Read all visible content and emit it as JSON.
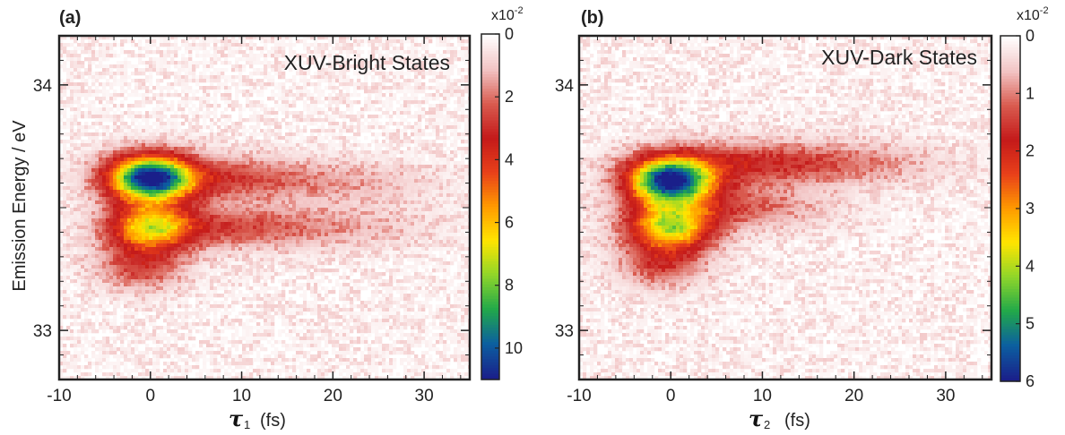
{
  "chart_data": [
    {
      "type": "heatmap",
      "panel_label": "(a)",
      "annotation": "XUV-Bright States",
      "xlabel_symbol": "τ",
      "xlabel_subscript": "1",
      "xlabel_unit": "(fs)",
      "ylabel": "Emission Energy / eV",
      "xlim": [
        -10,
        35
      ],
      "ylim": [
        32.8,
        34.2
      ],
      "xticks": [
        -10,
        0,
        10,
        20,
        30
      ],
      "yticks": [
        33,
        34
      ],
      "colorbar": {
        "range": [
          0,
          11
        ],
        "ticks": [
          0,
          2,
          4,
          6,
          8,
          10
        ],
        "multiplier": "x10",
        "multiplier_exp": "-2",
        "colormap": [
          "#ffffff",
          "#f2c4c4",
          "#d95b4f",
          "#c41a1a",
          "#e8401a",
          "#ff9a00",
          "#ffe500",
          "#8fd62a",
          "#21a84a",
          "#0c5fa0",
          "#1a1f8a"
        ]
      },
      "peaks": [
        {
          "x": 0,
          "y": 33.62,
          "value": 10.5
        },
        {
          "x": 0,
          "y": 33.42,
          "value": 6.0
        },
        {
          "x": -1,
          "y": 33.26,
          "value": 2.3
        },
        {
          "x": 8,
          "y": 33.62,
          "value": 2.2
        },
        {
          "x": 9,
          "y": 33.42,
          "value": 2.0
        },
        {
          "x": 22,
          "y": 33.6,
          "value": 0.9
        },
        {
          "x": 22,
          "y": 33.42,
          "value": 0.8
        }
      ]
    },
    {
      "type": "heatmap",
      "panel_label": "(b)",
      "annotation": "XUV-Dark States",
      "xlabel_symbol": "τ",
      "xlabel_subscript": "2",
      "xlabel_unit": "(fs)",
      "ylabel": "",
      "xlim": [
        -10,
        35
      ],
      "ylim": [
        32.8,
        34.2
      ],
      "xticks": [
        -10,
        0,
        10,
        20,
        30
      ],
      "yticks": [
        33,
        34
      ],
      "colorbar": {
        "range": [
          0,
          6
        ],
        "ticks": [
          0,
          1,
          2,
          3,
          4,
          5,
          6
        ],
        "multiplier": "x10",
        "multiplier_exp": "-2",
        "colormap": [
          "#ffffff",
          "#f2c4c4",
          "#d95b4f",
          "#c41a1a",
          "#e8401a",
          "#ff9a00",
          "#ffe500",
          "#8fd62a",
          "#21a84a",
          "#0c5fa0",
          "#1a1f8a"
        ]
      },
      "peaks": [
        {
          "x": 0,
          "y": 33.61,
          "value": 5.8
        },
        {
          "x": 0,
          "y": 33.42,
          "value": 3.6
        },
        {
          "x": -1,
          "y": 33.27,
          "value": 1.2
        },
        {
          "x": 8,
          "y": 33.68,
          "value": 1.3
        },
        {
          "x": 20,
          "y": 33.68,
          "value": 0.7
        },
        {
          "x": 7,
          "y": 33.5,
          "value": 1.0
        }
      ]
    }
  ]
}
